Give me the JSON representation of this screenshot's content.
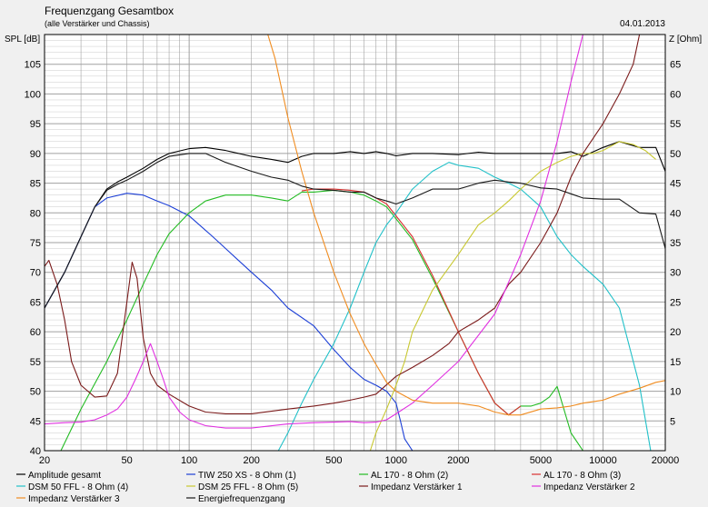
{
  "colors": {
    "background": "#f0f0f0",
    "plot_background": "#ffffff",
    "grid": "#a0a0a0"
  },
  "chart_data": {
    "type": "line",
    "title": "Frequenzgang Gesamtbox",
    "subtitle": "(alle Verstärker und Chassis)",
    "date": "04.01.2013",
    "ylabel_left": "SPL [dB]",
    "ylabel_right": "Z [Ohm]",
    "x_scale": "log",
    "xlim": [
      20,
      20000
    ],
    "ylim_left": [
      40,
      110
    ],
    "ylim_right": [
      0,
      70
    ],
    "grid": true,
    "legend_position": "bottom",
    "x_ticks": [
      {
        "value": 20,
        "label": "20"
      },
      {
        "value": 50,
        "label": "50"
      },
      {
        "value": 100,
        "label": "100"
      },
      {
        "value": 200,
        "label": "200"
      },
      {
        "value": 500,
        "label": "500"
      },
      {
        "value": 1000,
        "label": "1000"
      },
      {
        "value": 2000,
        "label": "2000"
      },
      {
        "value": 5000,
        "label": "5000"
      },
      {
        "value": 10000,
        "label": "10000"
      },
      {
        "value": 20000,
        "label": "20000"
      }
    ],
    "y_ticks_left": [
      "40",
      "45",
      "50",
      "55",
      "60",
      "65",
      "70",
      "75",
      "80",
      "85",
      "90",
      "95",
      "100",
      "105"
    ],
    "y_ticks_right": [
      "5",
      "10",
      "15",
      "20",
      "25",
      "30",
      "35",
      "40",
      "45",
      "50",
      "55",
      "60",
      "65"
    ],
    "series": [
      {
        "name": "Amplitude gesamt",
        "axis": "left",
        "color": "#000000",
        "x": [
          20,
          25,
          30,
          35,
          40,
          45,
          50,
          60,
          70,
          80,
          100,
          120,
          150,
          200,
          250,
          300,
          350,
          400,
          500,
          600,
          700,
          800,
          900,
          1000,
          1200,
          1500,
          2000,
          2500,
          3000,
          4000,
          5000,
          6000,
          7000,
          8000,
          10000,
          12000,
          15000,
          18000,
          20000
        ],
        "y": [
          64,
          70,
          76,
          81,
          84,
          85.2,
          86,
          87.5,
          89,
          90,
          90.8,
          91,
          90.5,
          89.5,
          89,
          88.5,
          89.5,
          90,
          90,
          90.3,
          90,
          90.3,
          90,
          89.6,
          90,
          90,
          89.8,
          90.2,
          90,
          90,
          90,
          90,
          90.3,
          89.5,
          91,
          92,
          91,
          91,
          87
        ]
      },
      {
        "name": "TIW 250 XS - 8 Ohm (1)",
        "axis": "left",
        "color": "#1c3fd6",
        "x": [
          20,
          25,
          30,
          35,
          40,
          50,
          60,
          70,
          80,
          100,
          130,
          150,
          200,
          250,
          300,
          400,
          500,
          600,
          700,
          800,
          900,
          1000,
          1050,
          1100,
          1200
        ],
        "y": [
          64,
          70,
          76,
          81,
          82.5,
          83.3,
          83,
          82,
          81.2,
          79.5,
          76,
          74,
          70,
          67,
          64,
          61,
          57,
          54,
          52,
          51,
          50,
          48,
          45,
          42,
          40
        ]
      },
      {
        "name": "AL 170 - 8 Ohm (2)",
        "axis": "left",
        "color": "#22bb22",
        "x": [
          24,
          30,
          40,
          50,
          60,
          70,
          80,
          100,
          120,
          150,
          200,
          250,
          300,
          350,
          400,
          500,
          600,
          700,
          800,
          900,
          1000,
          1200,
          1500,
          2000,
          2500,
          3000,
          3500,
          4000,
          4500,
          5000,
          5500,
          6000,
          7000,
          8000
        ],
        "y": [
          40,
          47,
          55,
          62,
          68,
          73,
          76.5,
          80,
          82,
          83,
          83,
          82.5,
          82,
          83.5,
          83.5,
          83.8,
          83.5,
          83,
          82,
          81,
          79,
          75.5,
          69,
          60,
          53,
          48,
          46,
          47.5,
          47.5,
          48,
          49,
          50.8,
          43,
          40
        ]
      },
      {
        "name": "AL 170 - 8 Ohm (3)",
        "axis": "left",
        "color": "#d83030",
        "x": [
          350,
          400,
          500,
          600,
          700,
          800,
          900,
          1000,
          1200,
          1500,
          2000,
          2500,
          3000,
          3500,
          4000
        ],
        "y": [
          83.7,
          84,
          84,
          83.8,
          83.5,
          82.5,
          81.5,
          79.5,
          76,
          69.5,
          60,
          53,
          48,
          46,
          47.5
        ]
      },
      {
        "name": "DSM 50 FFL - 8 Ohm (4)",
        "axis": "left",
        "color": "#20c0c8",
        "x": [
          270,
          300,
          350,
          400,
          500,
          600,
          700,
          800,
          900,
          1000,
          1200,
          1500,
          1800,
          2000,
          2500,
          3000,
          3500,
          4000,
          5000,
          6000,
          7000,
          8000,
          10000,
          12000,
          15000,
          17000
        ],
        "y": [
          40,
          43,
          48,
          52,
          58,
          64,
          70,
          75,
          78,
          80,
          84,
          87,
          88.5,
          88,
          87.5,
          86,
          85,
          84,
          81,
          76,
          73,
          71,
          68,
          64,
          51,
          40
        ]
      },
      {
        "name": "DSM 25 FFL - 8 Ohm (5)",
        "axis": "left",
        "color": "#c8c830",
        "x": [
          750,
          800,
          900,
          1000,
          1100,
          1200,
          1500,
          2000,
          2500,
          3000,
          3500,
          4000,
          5000,
          6000,
          7000,
          8000,
          9000,
          10000,
          12000,
          14000,
          16000,
          18000
        ],
        "y": [
          40,
          43,
          47,
          51,
          55,
          60,
          67,
          73,
          78,
          80,
          82,
          84,
          87,
          88.5,
          89.5,
          90,
          90,
          90.5,
          92,
          91.5,
          90.5,
          89
        ]
      },
      {
        "name": "Impedanz Verstärker 1",
        "axis": "right",
        "color": "#7a1a1a",
        "x": [
          20,
          21,
          23,
          25,
          27,
          30,
          35,
          40,
          45,
          50,
          53,
          56,
          60,
          65,
          70,
          80,
          100,
          120,
          150,
          200,
          300,
          400,
          500,
          600,
          700,
          800,
          1000,
          1200,
          1500,
          1800,
          2000,
          2500,
          3000,
          3500,
          4000,
          5000,
          6000,
          7000,
          8000,
          10000,
          12000,
          14000,
          15000,
          17000,
          20000
        ],
        "y": [
          31,
          32,
          28,
          22,
          15,
          11,
          9,
          9.2,
          13,
          25,
          31.7,
          29,
          19,
          13,
          11,
          9.5,
          7.5,
          6.5,
          6.2,
          6.2,
          7,
          7.5,
          8,
          8.5,
          9,
          9.5,
          12.5,
          14,
          16,
          18,
          20,
          22,
          24,
          28,
          30,
          35,
          40,
          46,
          50,
          55,
          60,
          65,
          70,
          72,
          72
        ]
      },
      {
        "name": "Impedanz Verstärker 2",
        "axis": "right",
        "color": "#e030e0",
        "x": [
          20,
          25,
          30,
          35,
          40,
          45,
          50,
          55,
          60,
          65,
          70,
          75,
          80,
          90,
          100,
          120,
          150,
          200,
          300,
          400,
          500,
          600,
          700,
          800,
          900,
          1000,
          1200,
          1500,
          2000,
          3000,
          4000,
          5000,
          6000,
          7000,
          8000,
          9000,
          10000,
          20000
        ],
        "y": [
          4.5,
          4.7,
          4.8,
          5.2,
          6,
          7,
          9,
          12,
          15,
          18,
          15,
          12,
          9,
          6.5,
          5.2,
          4.2,
          3.8,
          3.8,
          4.5,
          4.7,
          4.8,
          4.9,
          4.7,
          4.8,
          5.2,
          6.2,
          8,
          11,
          15,
          23,
          33,
          42,
          52,
          62,
          70,
          70,
          70,
          70
        ]
      },
      {
        "name": "Impedanz Verstärker 3",
        "axis": "right",
        "color": "#f08c20",
        "x": [
          240,
          260,
          300,
          350,
          400,
          500,
          600,
          700,
          800,
          900,
          1000,
          1200,
          1500,
          2000,
          2500,
          3000,
          3500,
          4000,
          5000,
          6000,
          7000,
          8000,
          10000,
          12000,
          15000,
          18000,
          20000
        ],
        "y": [
          70,
          66,
          56,
          47,
          40,
          30,
          23,
          18,
          14.5,
          11.5,
          10,
          8.5,
          8,
          8,
          7.5,
          6.5,
          6,
          6,
          7,
          7.2,
          7.5,
          8,
          8.5,
          9.5,
          10.5,
          11.5,
          11.8
        ]
      },
      {
        "name": "Energiefrequenzgang",
        "axis": "left",
        "color": "#181818",
        "x": [
          20,
          25,
          30,
          35,
          40,
          45,
          50,
          60,
          70,
          80,
          100,
          120,
          150,
          200,
          250,
          300,
          350,
          400,
          500,
          600,
          700,
          800,
          900,
          1000,
          1200,
          1500,
          2000,
          2500,
          3000,
          3500,
          4000,
          5000,
          6000,
          7000,
          8000,
          10000,
          12000,
          15000,
          18000,
          20000
        ],
        "y": [
          64,
          70,
          76,
          81,
          83.8,
          84.8,
          85.5,
          87,
          88.5,
          89.5,
          90,
          90,
          88.5,
          87,
          86,
          85.5,
          84.5,
          84,
          83.8,
          83.5,
          83.5,
          82.5,
          82,
          81.5,
          82.5,
          84,
          84,
          85,
          85.5,
          85.2,
          85,
          84.2,
          84,
          83.2,
          82.5,
          82.3,
          82.3,
          80,
          79.8,
          74
        ]
      }
    ]
  }
}
